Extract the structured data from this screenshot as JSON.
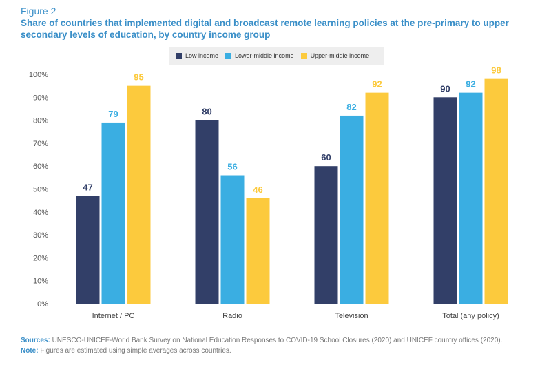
{
  "figure_label": "Figure 2",
  "title": "Share of countries that implemented digital and broadcast remote learning policies at the pre-primary to upper secondary levels of education, by country income group",
  "sources_label": "Sources:",
  "sources_text": "UNESCO-UNICEF-World Bank Survey on National Education Responses to COVID-19 School Closures (2020) and UNICEF country offices (2020).",
  "note_label": "Note:",
  "note_text": "Figures are estimated using simple averages across countries.",
  "chart_data": {
    "type": "bar",
    "categories": [
      "Internet / PC",
      "Radio",
      "Television",
      "Total (any policy)"
    ],
    "series": [
      {
        "name": "Low income",
        "values": [
          47,
          80,
          60,
          90
        ],
        "color": "#323f68"
      },
      {
        "name": "Lower-middle income",
        "values": [
          79,
          56,
          82,
          92
        ],
        "color": "#3aaee2"
      },
      {
        "name": "Upper-middle income",
        "values": [
          95,
          46,
          92,
          98
        ],
        "color": "#fcca3d"
      }
    ],
    "y_ticks": [
      "0%",
      "10%",
      "20%",
      "30%",
      "40%",
      "50%",
      "60%",
      "70%",
      "80%",
      "90%",
      "100%"
    ],
    "ylim": [
      0,
      100
    ],
    "grid": false,
    "legend_position": "top-center",
    "data_labels": true
  }
}
